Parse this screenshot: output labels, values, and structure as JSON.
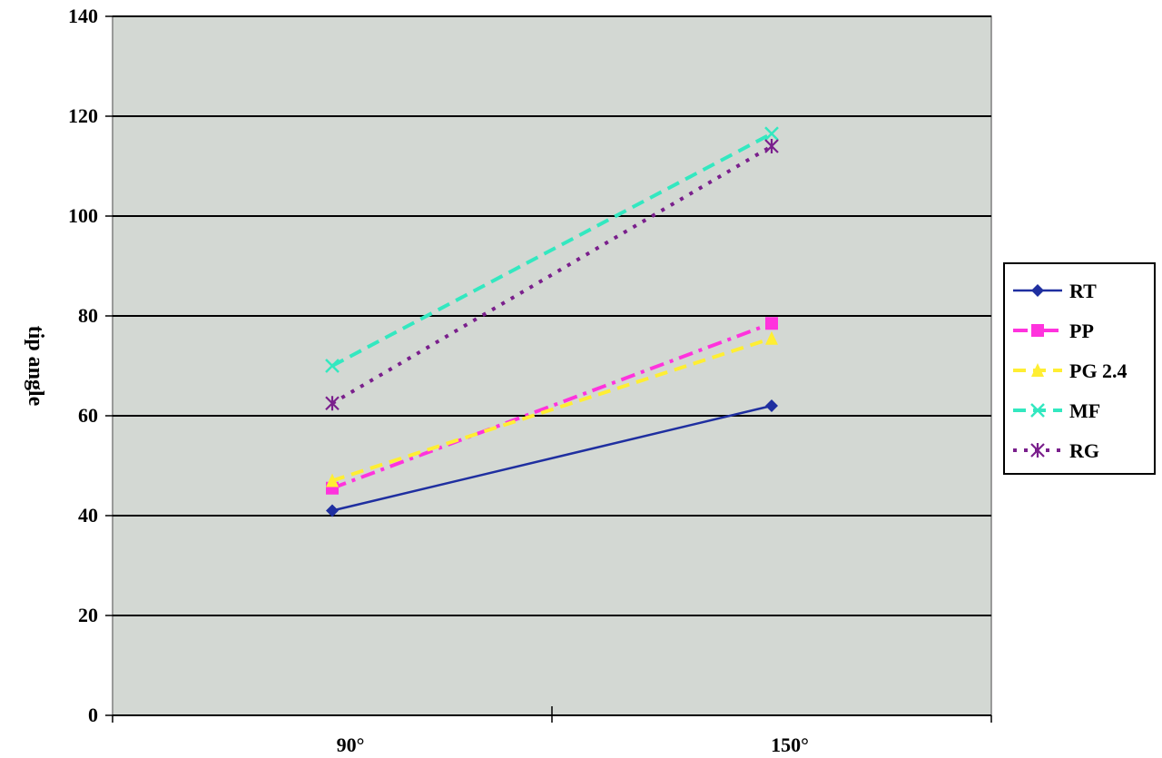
{
  "chart_data": {
    "type": "line",
    "categories": [
      "90°",
      "150°"
    ],
    "ylabel": "tip angle",
    "ylim": [
      0,
      140
    ],
    "yticks": [
      0,
      20,
      40,
      60,
      80,
      100,
      120,
      140
    ],
    "grid": true,
    "legend_position": "right",
    "plot_background": "#d3d8d3",
    "series": [
      {
        "name": "RT",
        "values": [
          41,
          62
        ],
        "color": "#1f2fa0",
        "dash": "solid",
        "marker": "diamond"
      },
      {
        "name": "PP",
        "values": [
          45.5,
          78.5
        ],
        "color": "#ff33dd",
        "dash": "dash-dot",
        "marker": "square"
      },
      {
        "name": "PG 2.4",
        "values": [
          47,
          75.5
        ],
        "color": "#ffee33",
        "dash": "dash",
        "marker": "triangle"
      },
      {
        "name": "MF",
        "values": [
          70,
          116.5
        ],
        "color": "#33e8c0",
        "dash": "dash",
        "marker": "x"
      },
      {
        "name": "RG",
        "values": [
          62.5,
          114
        ],
        "color": "#7a1f8c",
        "dash": "dot",
        "marker": "star"
      }
    ]
  }
}
